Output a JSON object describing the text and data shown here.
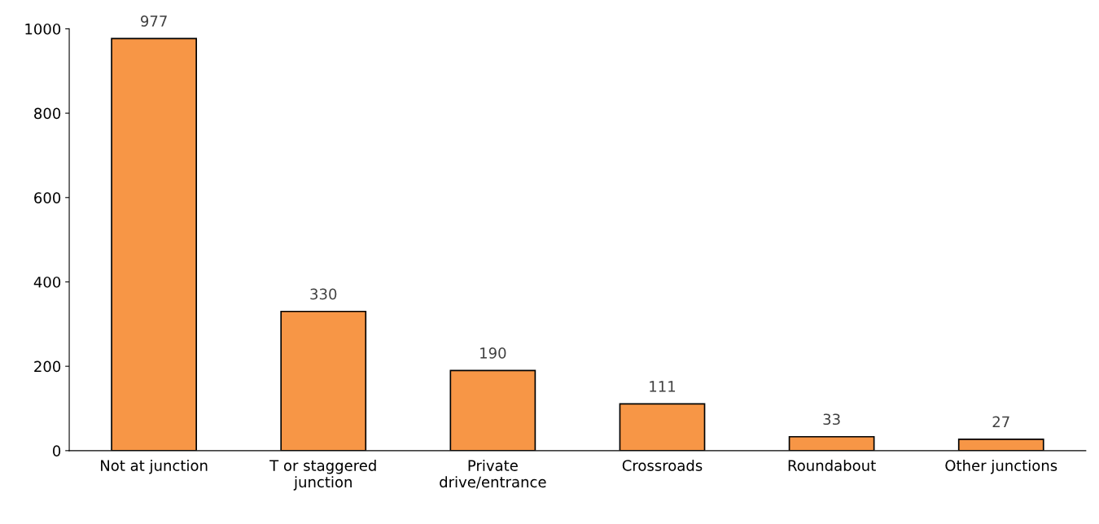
{
  "chart_data": {
    "type": "bar",
    "categories": [
      "Not at junction",
      "T or staggered\njunction",
      "Private\ndrive/entrance",
      "Crossroads",
      "Roundabout",
      "Other junctions"
    ],
    "values": [
      977,
      330,
      190,
      111,
      33,
      27
    ],
    "color": "#f79646",
    "ylim": [
      0,
      1000
    ],
    "yticks": [
      0,
      200,
      400,
      600,
      800,
      1000
    ],
    "data_labels": true,
    "grid": false,
    "legend": false
  }
}
